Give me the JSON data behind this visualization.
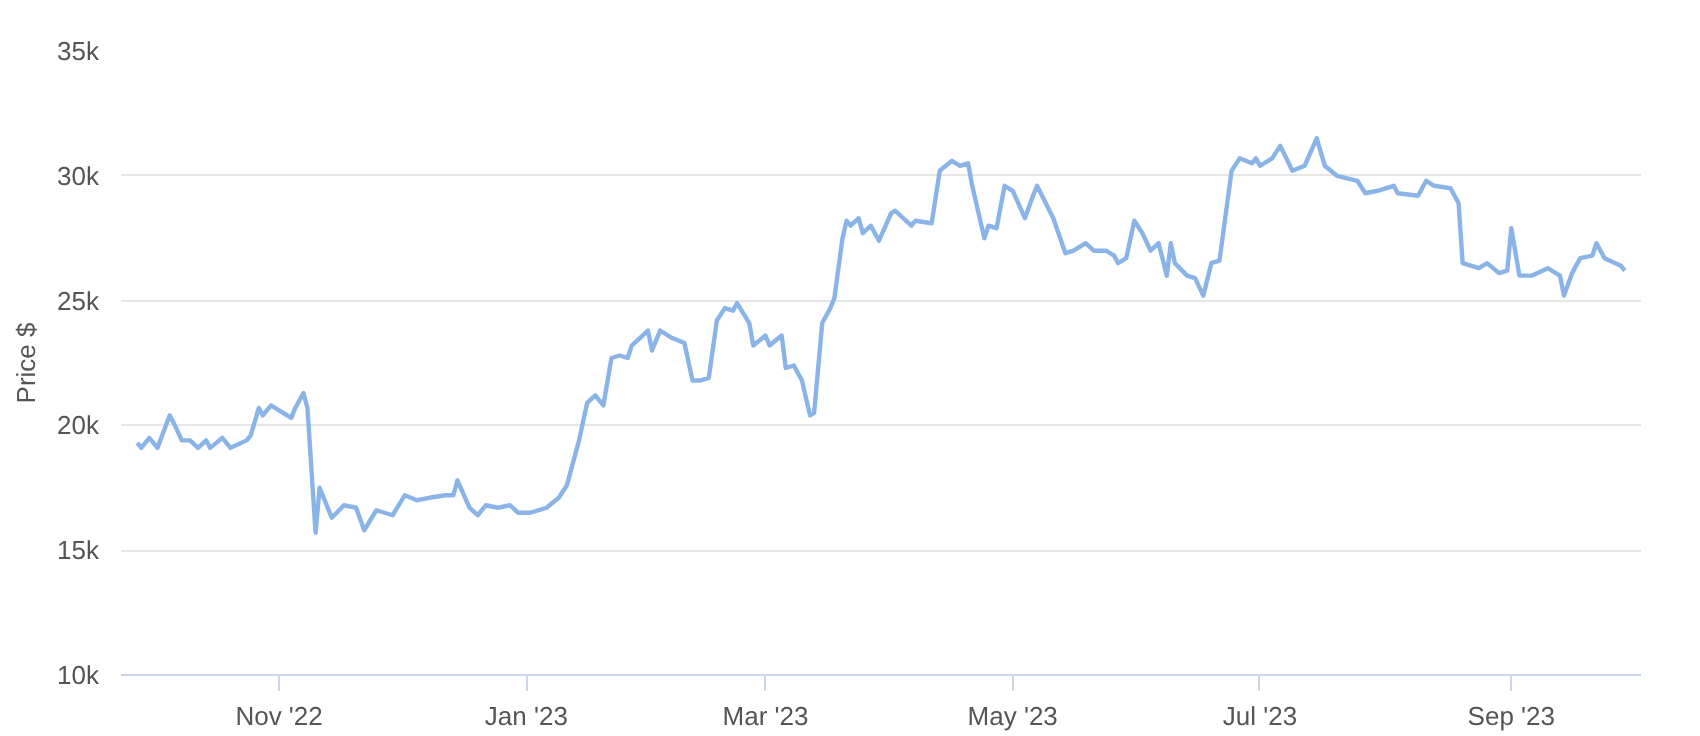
{
  "chart_data": {
    "type": "line",
    "ylabel": "Price $",
    "x": [
      "2022-09-27",
      "2022-09-28",
      "2022-09-30",
      "2022-10-02",
      "2022-10-05",
      "2022-10-06",
      "2022-10-08",
      "2022-10-10",
      "2022-10-12",
      "2022-10-14",
      "2022-10-15",
      "2022-10-18",
      "2022-10-20",
      "2022-10-24",
      "2022-10-25",
      "2022-10-27",
      "2022-10-28",
      "2022-10-30",
      "2022-11-02",
      "2022-11-04",
      "2022-11-05",
      "2022-11-07",
      "2022-11-08",
      "2022-11-10",
      "2022-11-11",
      "2022-11-14",
      "2022-11-17",
      "2022-11-20",
      "2022-11-22",
      "2022-11-25",
      "2022-11-29",
      "2022-12-02",
      "2022-12-05",
      "2022-12-08",
      "2022-12-12",
      "2022-12-14",
      "2022-12-15",
      "2022-12-18",
      "2022-12-20",
      "2022-12-22",
      "2022-12-25",
      "2022-12-28",
      "2022-12-30",
      "2023-01-02",
      "2023-01-06",
      "2023-01-09",
      "2023-01-11",
      "2023-01-14",
      "2023-01-16",
      "2023-01-18",
      "2023-01-20",
      "2023-01-22",
      "2023-01-24",
      "2023-01-26",
      "2023-01-27",
      "2023-01-31",
      "2023-02-01",
      "2023-02-03",
      "2023-02-06",
      "2023-02-09",
      "2023-02-11",
      "2023-02-13",
      "2023-02-15",
      "2023-02-17",
      "2023-02-19",
      "2023-02-21",
      "2023-02-22",
      "2023-02-25",
      "2023-02-26",
      "2023-03-01",
      "2023-03-02",
      "2023-03-05",
      "2023-03-06",
      "2023-03-08",
      "2023-03-10",
      "2023-03-12",
      "2023-03-13",
      "2023-03-15",
      "2023-03-17",
      "2023-03-18",
      "2023-03-19",
      "2023-03-20",
      "2023-03-21",
      "2023-03-22",
      "2023-03-24",
      "2023-03-25",
      "2023-03-27",
      "2023-03-29",
      "2023-04-01",
      "2023-04-02",
      "2023-04-06",
      "2023-04-07",
      "2023-04-11",
      "2023-04-13",
      "2023-04-16",
      "2023-04-18",
      "2023-04-20",
      "2023-04-21",
      "2023-04-24",
      "2023-04-25",
      "2023-04-27",
      "2023-04-29",
      "2023-05-01",
      "2023-05-04",
      "2023-05-06",
      "2023-05-07",
      "2023-05-11",
      "2023-05-14",
      "2023-05-16",
      "2023-05-19",
      "2023-05-21",
      "2023-05-24",
      "2023-05-26",
      "2023-05-27",
      "2023-05-29",
      "2023-05-31",
      "2023-06-02",
      "2023-06-04",
      "2023-06-06",
      "2023-06-08",
      "2023-06-09",
      "2023-06-10",
      "2023-06-13",
      "2023-06-15",
      "2023-06-17",
      "2023-06-19",
      "2023-06-21",
      "2023-06-24",
      "2023-06-26",
      "2023-06-29",
      "2023-06-30",
      "2023-07-01",
      "2023-07-04",
      "2023-07-06",
      "2023-07-09",
      "2023-07-12",
      "2023-07-15",
      "2023-07-17",
      "2023-07-20",
      "2023-07-25",
      "2023-07-27",
      "2023-07-30",
      "2023-08-03",
      "2023-08-04",
      "2023-08-09",
      "2023-08-11",
      "2023-08-13",
      "2023-08-17",
      "2023-08-19",
      "2023-08-20",
      "2023-08-24",
      "2023-08-26",
      "2023-08-29",
      "2023-08-31",
      "2023-09-01",
      "2023-09-03",
      "2023-09-06",
      "2023-09-10",
      "2023-09-13",
      "2023-09-14",
      "2023-09-16",
      "2023-09-18",
      "2023-09-21",
      "2023-09-22",
      "2023-09-24",
      "2023-09-28",
      "2023-09-29"
    ],
    "series": [
      {
        "color": "#8ab4e8",
        "values": [
          19300,
          19100,
          19500,
          19100,
          20400,
          20100,
          19400,
          19400,
          19100,
          19400,
          19100,
          19500,
          19100,
          19400,
          19600,
          20700,
          20400,
          20800,
          20500,
          20300,
          20700,
          21300,
          20700,
          15700,
          17500,
          16300,
          16800,
          16700,
          15800,
          16600,
          16400,
          17200,
          17000,
          17100,
          17200,
          17200,
          17800,
          16700,
          16400,
          16800,
          16700,
          16800,
          16500,
          16500,
          16700,
          17100,
          17600,
          19400,
          20900,
          21200,
          20800,
          22700,
          22800,
          22700,
          23200,
          23800,
          23000,
          23800,
          23500,
          23300,
          21800,
          21800,
          21900,
          24200,
          24700,
          24600,
          24900,
          24100,
          23200,
          23600,
          23200,
          23600,
          22300,
          22400,
          21800,
          20400,
          20500,
          24100,
          24700,
          25100,
          26300,
          27500,
          28200,
          28000,
          28300,
          27700,
          28000,
          27400,
          28500,
          28600,
          28000,
          28200,
          28100,
          30200,
          30600,
          30400,
          30500,
          29600,
          27500,
          28000,
          27900,
          29600,
          29400,
          28300,
          29200,
          29600,
          28300,
          26900,
          27000,
          27300,
          27000,
          27000,
          26800,
          26500,
          26700,
          28200,
          27700,
          27000,
          27300,
          26000,
          27300,
          26500,
          26000,
          25900,
          25200,
          26500,
          26600,
          30200,
          30700,
          30500,
          30700,
          30400,
          30700,
          31200,
          30200,
          30400,
          31500,
          30400,
          30000,
          29800,
          29300,
          29400,
          29600,
          29300,
          29200,
          29800,
          29600,
          29500,
          28900,
          26500,
          26300,
          26500,
          26100,
          26200,
          27900,
          26000,
          26000,
          26300,
          26000,
          25200,
          26100,
          26700,
          26800,
          27300,
          26700,
          26400,
          26200
        ]
      }
    ],
    "xlim": [
      "2022-09-23",
      "2023-10-03"
    ],
    "xticks": [
      {
        "value": "2022-11-01",
        "label": "Nov '22"
      },
      {
        "value": "2023-01-01",
        "label": "Jan '23"
      },
      {
        "value": "2023-03-01",
        "label": "Mar '23"
      },
      {
        "value": "2023-05-01",
        "label": "May '23"
      },
      {
        "value": "2023-07-01",
        "label": "Jul '23"
      },
      {
        "value": "2023-09-01",
        "label": "Sep '23"
      }
    ],
    "ylim": [
      10000,
      35000
    ],
    "yticks": [
      {
        "value": 10000,
        "label": "10k"
      },
      {
        "value": 15000,
        "label": "15k"
      },
      {
        "value": 20000,
        "label": "20k"
      },
      {
        "value": 25000,
        "label": "25k"
      },
      {
        "value": 30000,
        "label": "30k"
      },
      {
        "value": 35000,
        "label": "35k"
      }
    ],
    "grid": "y",
    "marker": "none",
    "line_style": "solid"
  }
}
